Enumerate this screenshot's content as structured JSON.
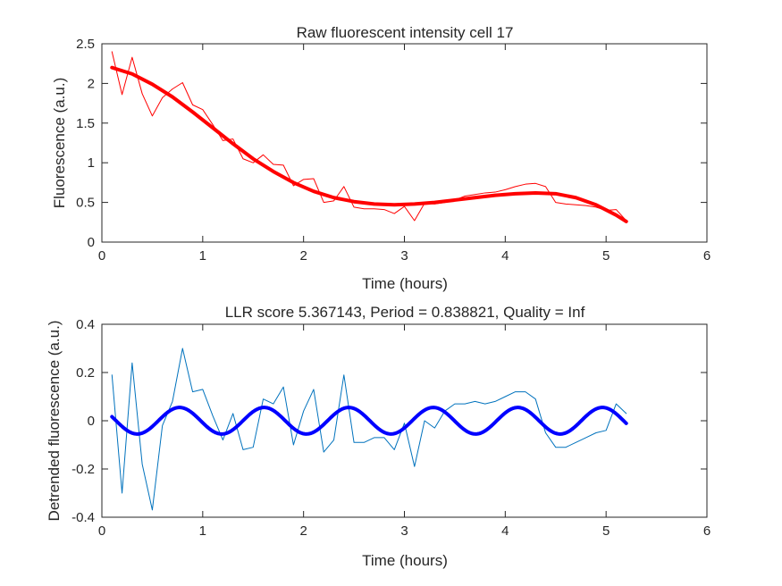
{
  "chart_data": [
    {
      "type": "line",
      "title": "Raw fluorescent intensity cell 17",
      "xlabel": "Time (hours)",
      "ylabel": "Fluorescence (a.u.)",
      "xlim": [
        0,
        6
      ],
      "ylim": [
        0,
        2.5
      ],
      "xticks": [
        0,
        1,
        2,
        3,
        4,
        5,
        6
      ],
      "xtick_labels": [
        "0",
        "1",
        "2",
        "3",
        "4",
        "5",
        "6"
      ],
      "yticks": [
        0,
        0.5,
        1,
        1.5,
        2,
        2.5
      ],
      "ytick_labels": [
        "0",
        "0.5",
        "1",
        "1.5",
        "2",
        "2.5"
      ],
      "grid": false,
      "series": [
        {
          "color": "#ff0000",
          "line_style": "thin",
          "x": [
            0.1,
            0.2,
            0.3,
            0.4,
            0.5,
            0.6,
            0.7,
            0.8,
            0.9,
            1.0,
            1.1,
            1.2,
            1.3,
            1.4,
            1.5,
            1.6,
            1.7,
            1.8,
            1.9,
            2.0,
            2.1,
            2.2,
            2.3,
            2.4,
            2.5,
            2.6,
            2.7,
            2.8,
            2.9,
            3.0,
            3.1,
            3.2,
            3.3,
            3.4,
            3.5,
            3.6,
            3.7,
            3.8,
            3.9,
            4.0,
            4.1,
            4.2,
            4.3,
            4.4,
            4.5,
            4.6,
            4.7,
            4.8,
            4.9,
            5.0,
            5.1,
            5.2
          ],
          "y": [
            2.4,
            1.86,
            2.33,
            1.87,
            1.59,
            1.82,
            1.93,
            2.01,
            1.73,
            1.67,
            1.48,
            1.28,
            1.3,
            1.05,
            1.0,
            1.1,
            0.98,
            0.97,
            0.71,
            0.79,
            0.8,
            0.5,
            0.52,
            0.7,
            0.44,
            0.42,
            0.42,
            0.41,
            0.36,
            0.45,
            0.27,
            0.49,
            0.48,
            0.5,
            0.53,
            0.58,
            0.6,
            0.62,
            0.63,
            0.66,
            0.7,
            0.73,
            0.74,
            0.7,
            0.5,
            0.48,
            0.47,
            0.46,
            0.44,
            0.4,
            0.41,
            0.27
          ]
        },
        {
          "color": "#ff0000",
          "line_style": "thick",
          "x": [
            0.1,
            0.3,
            0.5,
            0.7,
            0.9,
            1.1,
            1.3,
            1.5,
            1.7,
            1.9,
            2.1,
            2.3,
            2.5,
            2.7,
            2.9,
            3.1,
            3.3,
            3.5,
            3.7,
            3.9,
            4.1,
            4.3,
            4.5,
            4.7,
            4.9,
            5.1,
            5.2
          ],
          "y": [
            2.2,
            2.12,
            1.99,
            1.83,
            1.64,
            1.44,
            1.24,
            1.05,
            0.89,
            0.75,
            0.64,
            0.56,
            0.51,
            0.48,
            0.47,
            0.48,
            0.5,
            0.53,
            0.56,
            0.59,
            0.61,
            0.62,
            0.61,
            0.56,
            0.47,
            0.34,
            0.26
          ]
        }
      ]
    },
    {
      "type": "line",
      "title": "LLR score 5.367143, Period = 0.838821, Quality = Inf",
      "xlabel": "Time (hours)",
      "ylabel": "Detrended fluorescence (a.u.)",
      "xlim": [
        0,
        6
      ],
      "ylim": [
        -0.4,
        0.4
      ],
      "xticks": [
        0,
        1,
        2,
        3,
        4,
        5,
        6
      ],
      "xtick_labels": [
        "0",
        "1",
        "2",
        "3",
        "4",
        "5",
        "6"
      ],
      "yticks": [
        -0.4,
        -0.2,
        0,
        0.2,
        0.4
      ],
      "ytick_labels": [
        "-0.4",
        "-0.2",
        "0",
        "0.2",
        "0.4"
      ],
      "grid": false,
      "series": [
        {
          "color": "#0072bd",
          "line_style": "thin",
          "x": [
            0.1,
            0.2,
            0.3,
            0.4,
            0.5,
            0.6,
            0.7,
            0.8,
            0.9,
            1.0,
            1.1,
            1.2,
            1.3,
            1.4,
            1.5,
            1.6,
            1.7,
            1.8,
            1.9,
            2.0,
            2.1,
            2.2,
            2.3,
            2.4,
            2.5,
            2.6,
            2.7,
            2.8,
            2.9,
            3.0,
            3.1,
            3.2,
            3.3,
            3.4,
            3.5,
            3.6,
            3.7,
            3.8,
            3.9,
            4.0,
            4.1,
            4.2,
            4.3,
            4.4,
            4.5,
            4.6,
            4.7,
            4.8,
            4.9,
            5.0,
            5.1,
            5.2
          ],
          "y": [
            0.19,
            -0.3,
            0.24,
            -0.18,
            -0.37,
            -0.02,
            0.08,
            0.3,
            0.12,
            0.13,
            0.02,
            -0.08,
            0.03,
            -0.12,
            -0.11,
            0.09,
            0.07,
            0.14,
            -0.1,
            0.04,
            0.13,
            -0.13,
            -0.08,
            0.19,
            -0.09,
            -0.09,
            -0.07,
            -0.07,
            -0.12,
            -0.01,
            -0.19,
            0.0,
            -0.03,
            0.04,
            0.07,
            0.07,
            0.08,
            0.07,
            0.08,
            0.1,
            0.12,
            0.12,
            0.09,
            -0.05,
            -0.11,
            -0.11,
            -0.09,
            -0.07,
            -0.05,
            -0.04,
            0.07,
            0.03
          ]
        },
        {
          "color": "#0000ff",
          "line_style": "thick",
          "model": "sine",
          "amplitude": 0.055,
          "period": 0.8388,
          "phase_peak_x": 0.77,
          "x_start": 0.1,
          "x_end": 5.2
        }
      ]
    }
  ]
}
